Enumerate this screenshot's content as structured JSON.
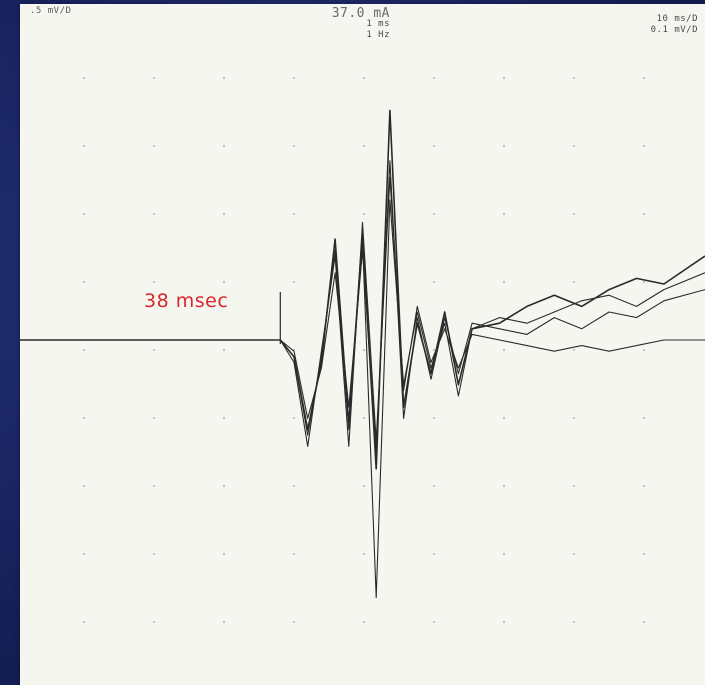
{
  "header": {
    "left_gain": ".5 mV/D",
    "stim_current": "37.0 mA",
    "stim_duration": "1 ms",
    "stim_rate": "1 Hz",
    "timebase": "10 ms/D",
    "gain2": "0.1 mV/D"
  },
  "annotation": {
    "latency_label": "38 msec"
  },
  "colors": {
    "background": "#1e2a66",
    "paper": "#f6f6f1",
    "trace": "#2a2a2a",
    "annotation": "#d8262a",
    "grid_dot": "#9a9a9a"
  },
  "chart_data": {
    "type": "line",
    "title": "",
    "xlabel": "",
    "ylabel": "",
    "xlim": [
      0,
      100
    ],
    "ylim": [
      -5,
      5
    ],
    "grid": "dotted",
    "marker_latency_ms": 38,
    "series": [
      {
        "x": [
          0,
          38,
          40,
          42,
          44,
          46,
          48,
          50,
          52,
          54,
          56,
          58,
          60,
          62,
          64,
          66,
          70,
          74,
          78,
          82,
          86,
          90,
          94,
          100
        ],
        "y": [
          0,
          0,
          -0.3,
          -1.6,
          -0.4,
          1.8,
          -1.5,
          1.9,
          -2.3,
          4.1,
          -1.2,
          0.3,
          -0.6,
          0.5,
          -0.8,
          0.2,
          0.3,
          0.6,
          0.8,
          0.6,
          0.9,
          1.1,
          1.0,
          1.5
        ]
      },
      {
        "x": [
          0,
          38,
          40,
          42,
          44,
          46,
          48,
          50,
          52,
          54,
          56,
          58,
          60,
          62,
          64,
          66,
          70,
          74,
          78,
          82,
          86,
          90,
          94,
          100
        ],
        "y": [
          0,
          0,
          -0.4,
          -1.9,
          -0.2,
          1.5,
          -1.9,
          2.1,
          -1.8,
          2.9,
          -0.9,
          0.6,
          -0.4,
          0.2,
          -0.5,
          0.1,
          0.0,
          -0.1,
          -0.2,
          -0.1,
          -0.2,
          -0.1,
          0.0,
          0.0
        ]
      },
      {
        "x": [
          0,
          38,
          40,
          42,
          44,
          46,
          48,
          50,
          52,
          54,
          56,
          58,
          60,
          62,
          64,
          66,
          70,
          74,
          78,
          82,
          86,
          90,
          94,
          100
        ],
        "y": [
          0,
          0,
          -0.2,
          -1.4,
          -0.5,
          1.2,
          -1.2,
          1.6,
          -2.0,
          3.2,
          -1.4,
          0.4,
          -0.7,
          0.4,
          -0.6,
          0.3,
          0.2,
          0.1,
          0.4,
          0.2,
          0.5,
          0.4,
          0.7,
          0.9
        ]
      },
      {
        "x": [
          0,
          38,
          40,
          42,
          44,
          46,
          48,
          50,
          52,
          54,
          56,
          58,
          60,
          62,
          64,
          66,
          70,
          74,
          78,
          82,
          86,
          90,
          94,
          100
        ],
        "y": [
          0,
          0,
          -0.3,
          -1.7,
          -0.3,
          1.6,
          -1.6,
          1.8,
          -4.6,
          2.5,
          -0.8,
          0.5,
          -0.5,
          0.3,
          -1.0,
          0.2,
          0.4,
          0.3,
          0.5,
          0.7,
          0.8,
          0.6,
          0.9,
          1.2
        ]
      }
    ]
  }
}
